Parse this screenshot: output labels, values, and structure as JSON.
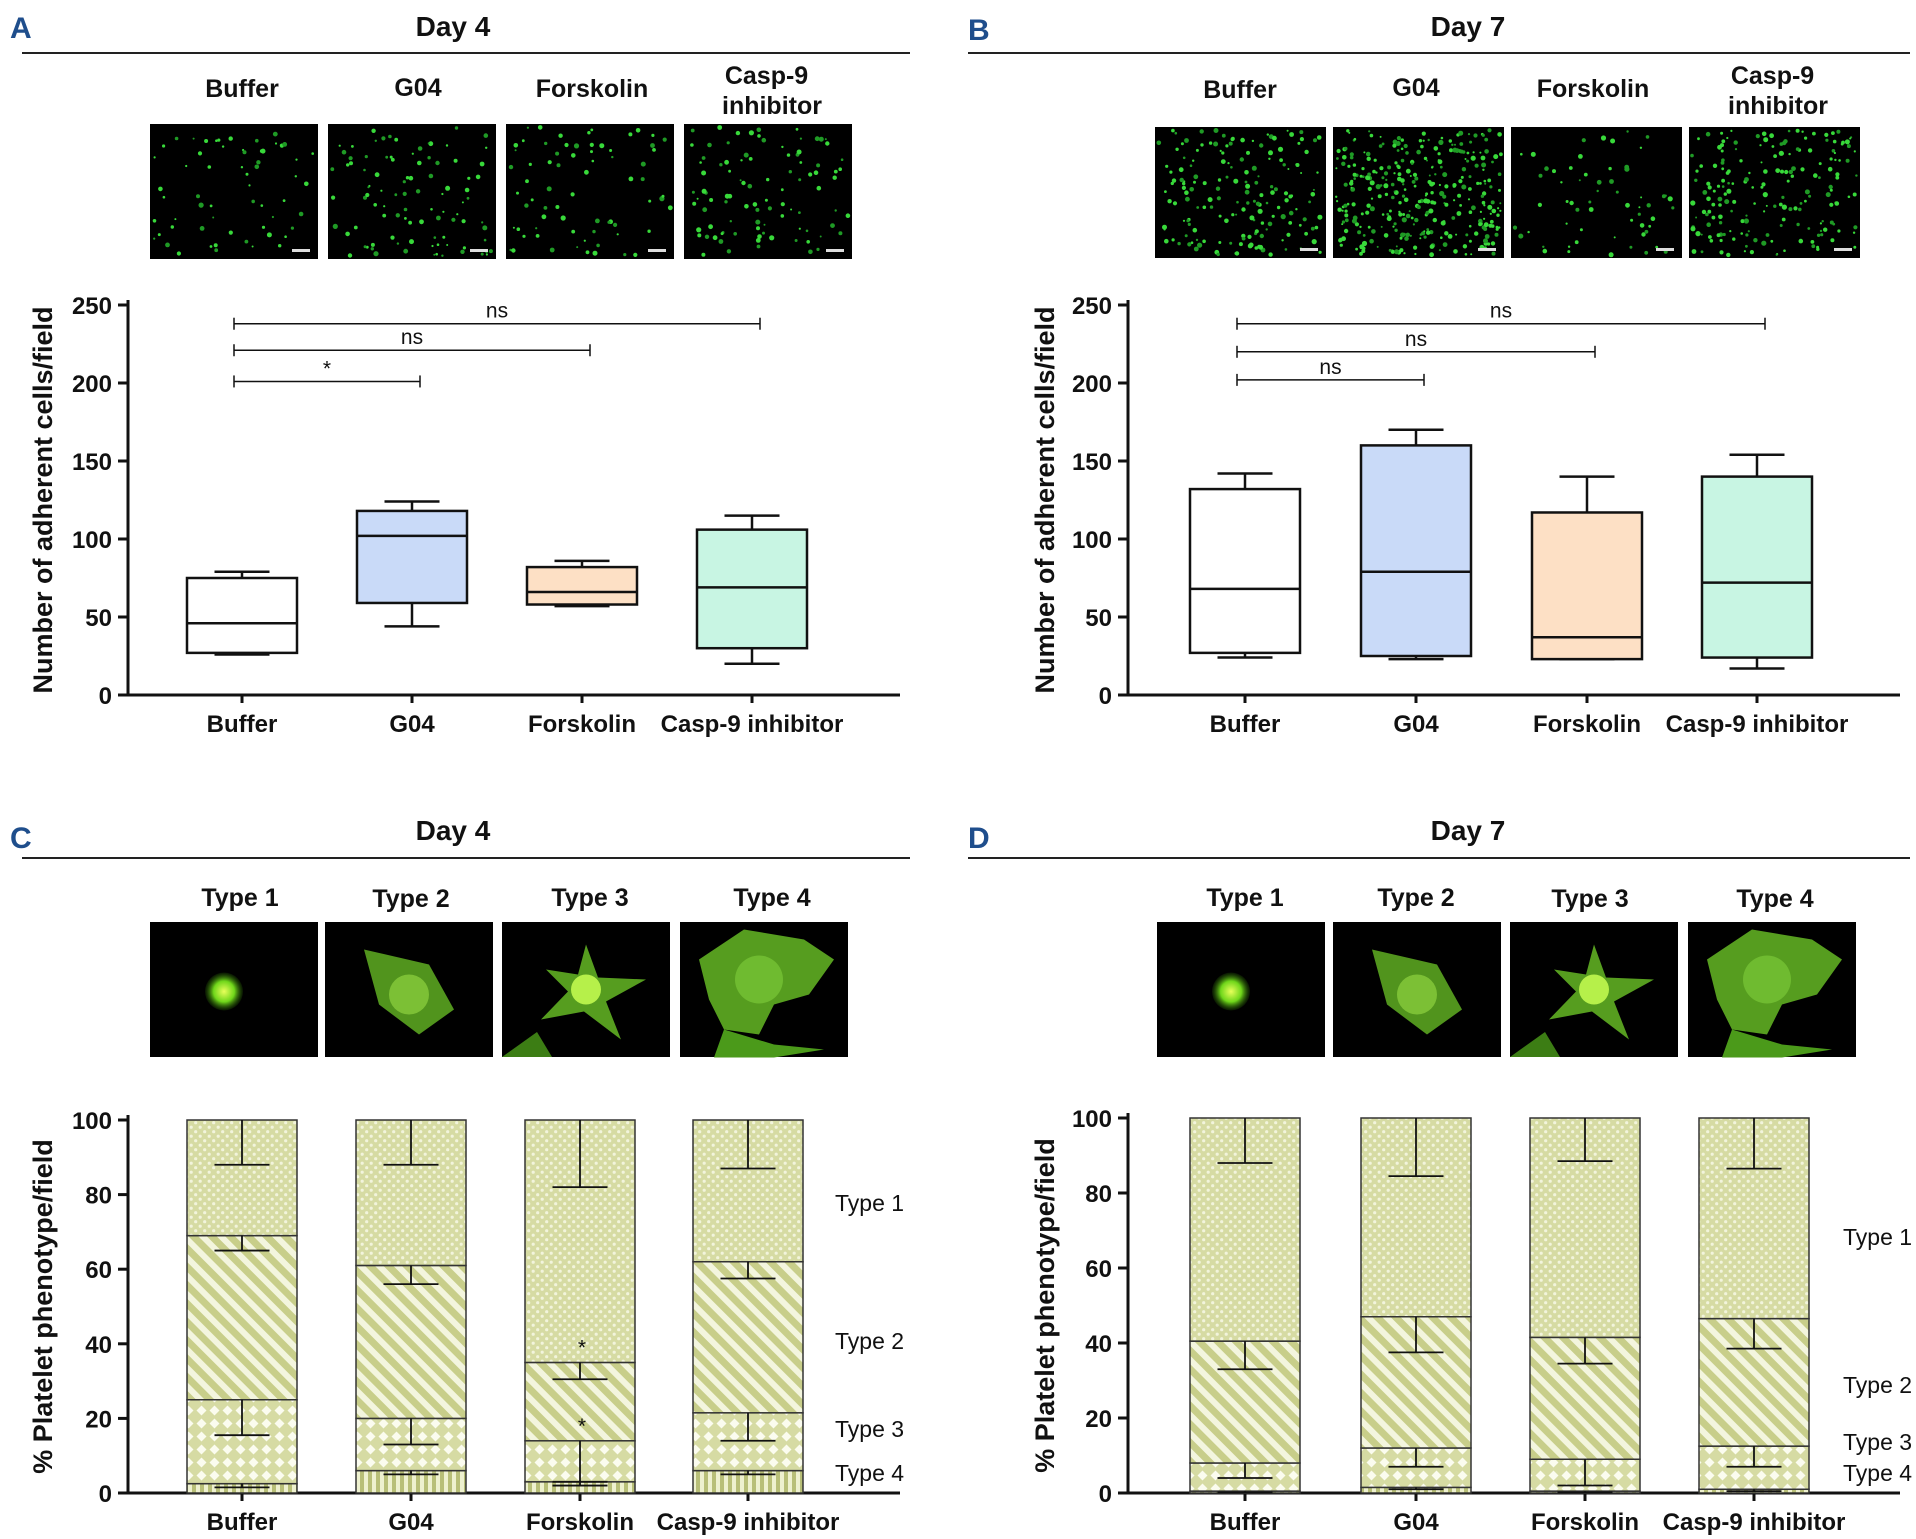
{
  "colors": {
    "buffer": "#ffffff",
    "g04": "#c9daf8",
    "forskolin": "#fde0c5",
    "casp9": "#c8f5e3",
    "bar_fill": "#d6dba3",
    "bar_dark": "#b8bf78",
    "panel_label": "#1f4e8c"
  },
  "panels": {
    "A": {
      "label": "A",
      "title": "Day 4",
      "image_labels": [
        "Buffer",
        "G04",
        "Forskolin",
        "Casp-9 inhibitor"
      ]
    },
    "B": {
      "label": "B",
      "title": "Day 7",
      "image_labels": [
        "Buffer",
        "G04",
        "Forskolin",
        "Casp-9 inhibitor"
      ]
    },
    "C": {
      "label": "C",
      "title": "Day 4",
      "image_labels": [
        "Type 1",
        "Type 2",
        "Type 3",
        "Type 4"
      ]
    },
    "D": {
      "label": "D",
      "title": "Day 7",
      "image_labels": [
        "Type 1",
        "Type 2",
        "Type 3",
        "Type 4"
      ]
    }
  },
  "chart_data": [
    {
      "panel": "A",
      "type": "box",
      "title": "Day 4",
      "ylabel": "Number of adherent cells/field",
      "ylim": [
        0,
        250
      ],
      "yticks": [
        0,
        50,
        100,
        150,
        200,
        250
      ],
      "categories": [
        "Buffer",
        "G04",
        "Forskolin",
        "Casp-9 inhibitor"
      ],
      "boxes": [
        {
          "min": 26,
          "q1": 27,
          "median": 46,
          "q3": 75,
          "max": 79
        },
        {
          "min": 44,
          "q1": 59,
          "median": 102,
          "q3": 118,
          "max": 124
        },
        {
          "min": 57,
          "q1": 58,
          "median": 66,
          "q3": 82,
          "max": 86
        },
        {
          "min": 20,
          "q1": 30,
          "median": 69,
          "q3": 106,
          "max": 115
        }
      ],
      "significance": [
        {
          "from": 0,
          "to": 1,
          "label": "*",
          "y": 201
        },
        {
          "from": 0,
          "to": 2,
          "label": "ns",
          "y": 221
        },
        {
          "from": 0,
          "to": 3,
          "label": "ns",
          "y": 238
        }
      ]
    },
    {
      "panel": "B",
      "type": "box",
      "title": "Day 7",
      "ylabel": "Number of adherent cells/field",
      "ylim": [
        0,
        250
      ],
      "yticks": [
        0,
        50,
        100,
        150,
        200,
        250
      ],
      "categories": [
        "Buffer",
        "G04",
        "Forskolin",
        "Casp-9 inhibitor"
      ],
      "boxes": [
        {
          "min": 24,
          "q1": 27,
          "median": 68,
          "q3": 132,
          "max": 142
        },
        {
          "min": 23,
          "q1": 25,
          "median": 79,
          "q3": 160,
          "max": 170
        },
        {
          "min": 23,
          "q1": 23,
          "median": 37,
          "q3": 117,
          "max": 140
        },
        {
          "min": 17,
          "q1": 24,
          "median": 72,
          "q3": 140,
          "max": 154
        }
      ],
      "significance": [
        {
          "from": 0,
          "to": 1,
          "label": "ns",
          "y": 202
        },
        {
          "from": 0,
          "to": 2,
          "label": "ns",
          "y": 220
        },
        {
          "from": 0,
          "to": 3,
          "label": "ns",
          "y": 238
        }
      ]
    },
    {
      "panel": "C",
      "type": "stacked_bar",
      "title": "Day 4",
      "ylabel": "% Platelet phenotype/field",
      "ylim": [
        0,
        100
      ],
      "yticks": [
        0,
        20,
        40,
        60,
        80,
        100
      ],
      "categories": [
        "Buffer",
        "G04",
        "Forskolin",
        "Casp-9 inhibitor"
      ],
      "series": [
        {
          "name": "Type 4",
          "values": [
            2.5,
            6,
            3,
            6
          ],
          "errors": [
            1,
            1,
            1,
            1
          ]
        },
        {
          "name": "Type 3",
          "values": [
            22.5,
            14,
            11,
            15.5
          ],
          "errors": [
            9.5,
            7,
            11,
            7.5
          ]
        },
        {
          "name": "Type 2",
          "values": [
            44,
            41,
            21,
            40.5
          ],
          "errors": [
            4,
            5,
            4.5,
            4.5
          ]
        },
        {
          "name": "Type 1",
          "values": [
            31,
            39,
            65,
            38
          ],
          "errors": [
            12,
            12,
            18,
            13
          ]
        }
      ],
      "annotations": [
        {
          "category": "Forskolin",
          "series": "Type 2",
          "label": "*"
        },
        {
          "category": "Forskolin",
          "series": "Type 3",
          "label": "*"
        }
      ],
      "legend": [
        "Type 1",
        "Type 2",
        "Type 3",
        "Type 4"
      ]
    },
    {
      "panel": "D",
      "type": "stacked_bar",
      "title": "Day 7",
      "ylabel": "% Platelet phenotype/field",
      "ylim": [
        0,
        100
      ],
      "yticks": [
        0,
        20,
        40,
        60,
        80,
        100
      ],
      "categories": [
        "Buffer",
        "G04",
        "Forskolin",
        "Casp-9 inhibitor"
      ],
      "series": [
        {
          "name": "Type 4",
          "values": [
            0.5,
            1.5,
            0.5,
            1
          ],
          "errors": [
            0.3,
            0.5,
            0.3,
            0.5
          ]
        },
        {
          "name": "Type 3",
          "values": [
            7.5,
            10.5,
            8.5,
            11.5
          ],
          "errors": [
            4,
            5,
            7,
            5.5
          ]
        },
        {
          "name": "Type 2",
          "values": [
            32.5,
            35,
            32.5,
            34
          ],
          "errors": [
            7.5,
            9.5,
            7,
            8
          ]
        },
        {
          "name": "Type 1",
          "values": [
            59.5,
            53,
            58.5,
            53.5
          ],
          "errors": [
            12,
            15.5,
            11.5,
            13.5
          ]
        }
      ],
      "annotations": [],
      "legend": [
        "Type 1",
        "Type 2",
        "Type 3",
        "Type 4"
      ]
    }
  ]
}
